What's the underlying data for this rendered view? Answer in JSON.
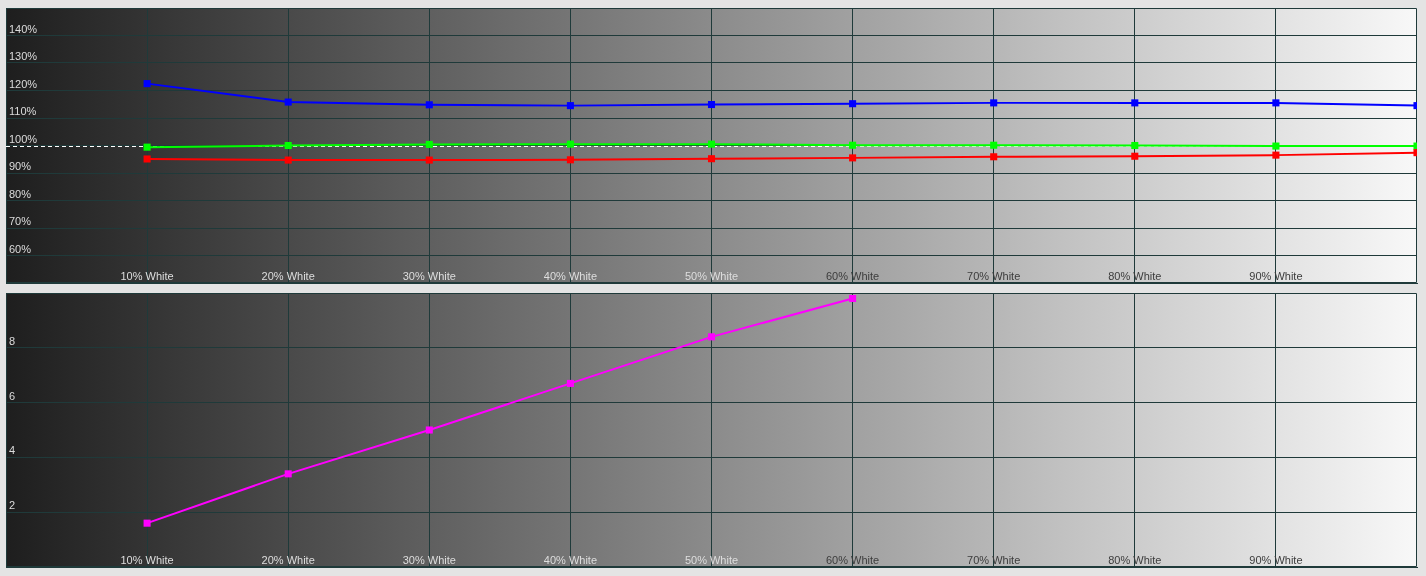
{
  "chart_data": [
    {
      "type": "line",
      "x": [
        10,
        20,
        30,
        40,
        50,
        60,
        70,
        80,
        90,
        100
      ],
      "xlim": [
        0,
        100
      ],
      "xticks": [
        {
          "value": 10,
          "label": "10% White"
        },
        {
          "value": 20,
          "label": "20% White"
        },
        {
          "value": 30,
          "label": "30% White"
        },
        {
          "value": 40,
          "label": "40% White"
        },
        {
          "value": 50,
          "label": "50% White"
        },
        {
          "value": 60,
          "label": "60% White"
        },
        {
          "value": 70,
          "label": "70% White"
        },
        {
          "value": 80,
          "label": "80% White"
        },
        {
          "value": 90,
          "label": "90% White"
        }
      ],
      "ylim": [
        50,
        150
      ],
      "yticks": [
        {
          "value": 60,
          "label": "60%"
        },
        {
          "value": 70,
          "label": "70%"
        },
        {
          "value": 80,
          "label": "80%"
        },
        {
          "value": 90,
          "label": "90%"
        },
        {
          "value": 100,
          "label": "100%"
        },
        {
          "value": 110,
          "label": "110%"
        },
        {
          "value": 120,
          "label": "120%"
        },
        {
          "value": 130,
          "label": "130%"
        },
        {
          "value": 140,
          "label": "140%"
        }
      ],
      "grid": true,
      "marker": "square",
      "ref_lines": [
        {
          "axis": "y",
          "value": 100,
          "color": "#ffffff",
          "line_style": "dashed"
        }
      ],
      "series": [
        {
          "color": "#ff0000",
          "values": [
            95.1,
            94.7,
            94.7,
            94.8,
            95.2,
            95.5,
            95.9,
            96.1,
            96.5,
            97.4
          ]
        },
        {
          "color": "#00ff00",
          "values": [
            99.4,
            100.0,
            100.4,
            100.5,
            100.5,
            100.1,
            100.1,
            100.0,
            99.8,
            99.8
          ]
        },
        {
          "color": "#0000ff",
          "values": [
            122.5,
            115.8,
            114.8,
            114.5,
            114.9,
            115.2,
            115.5,
            115.5,
            115.5,
            114.5
          ]
        }
      ]
    },
    {
      "type": "line",
      "x": [
        10,
        20,
        30,
        40,
        50,
        60
      ],
      "xlim": [
        0,
        100
      ],
      "xticks": [
        {
          "value": 10,
          "label": "10% White"
        },
        {
          "value": 20,
          "label": "20% White"
        },
        {
          "value": 30,
          "label": "30% White"
        },
        {
          "value": 40,
          "label": "40% White"
        },
        {
          "value": 50,
          "label": "50% White"
        },
        {
          "value": 60,
          "label": "60% White"
        },
        {
          "value": 70,
          "label": "70% White"
        },
        {
          "value": 80,
          "label": "80% White"
        },
        {
          "value": 90,
          "label": "90% White"
        }
      ],
      "ylim": [
        0,
        10
      ],
      "yticks": [
        2,
        4,
        6,
        8
      ],
      "grid": true,
      "marker": "square",
      "series": [
        {
          "color": "#ff00ff",
          "values": [
            1.6,
            3.4,
            5.0,
            6.7,
            8.4,
            9.8
          ]
        }
      ]
    }
  ]
}
